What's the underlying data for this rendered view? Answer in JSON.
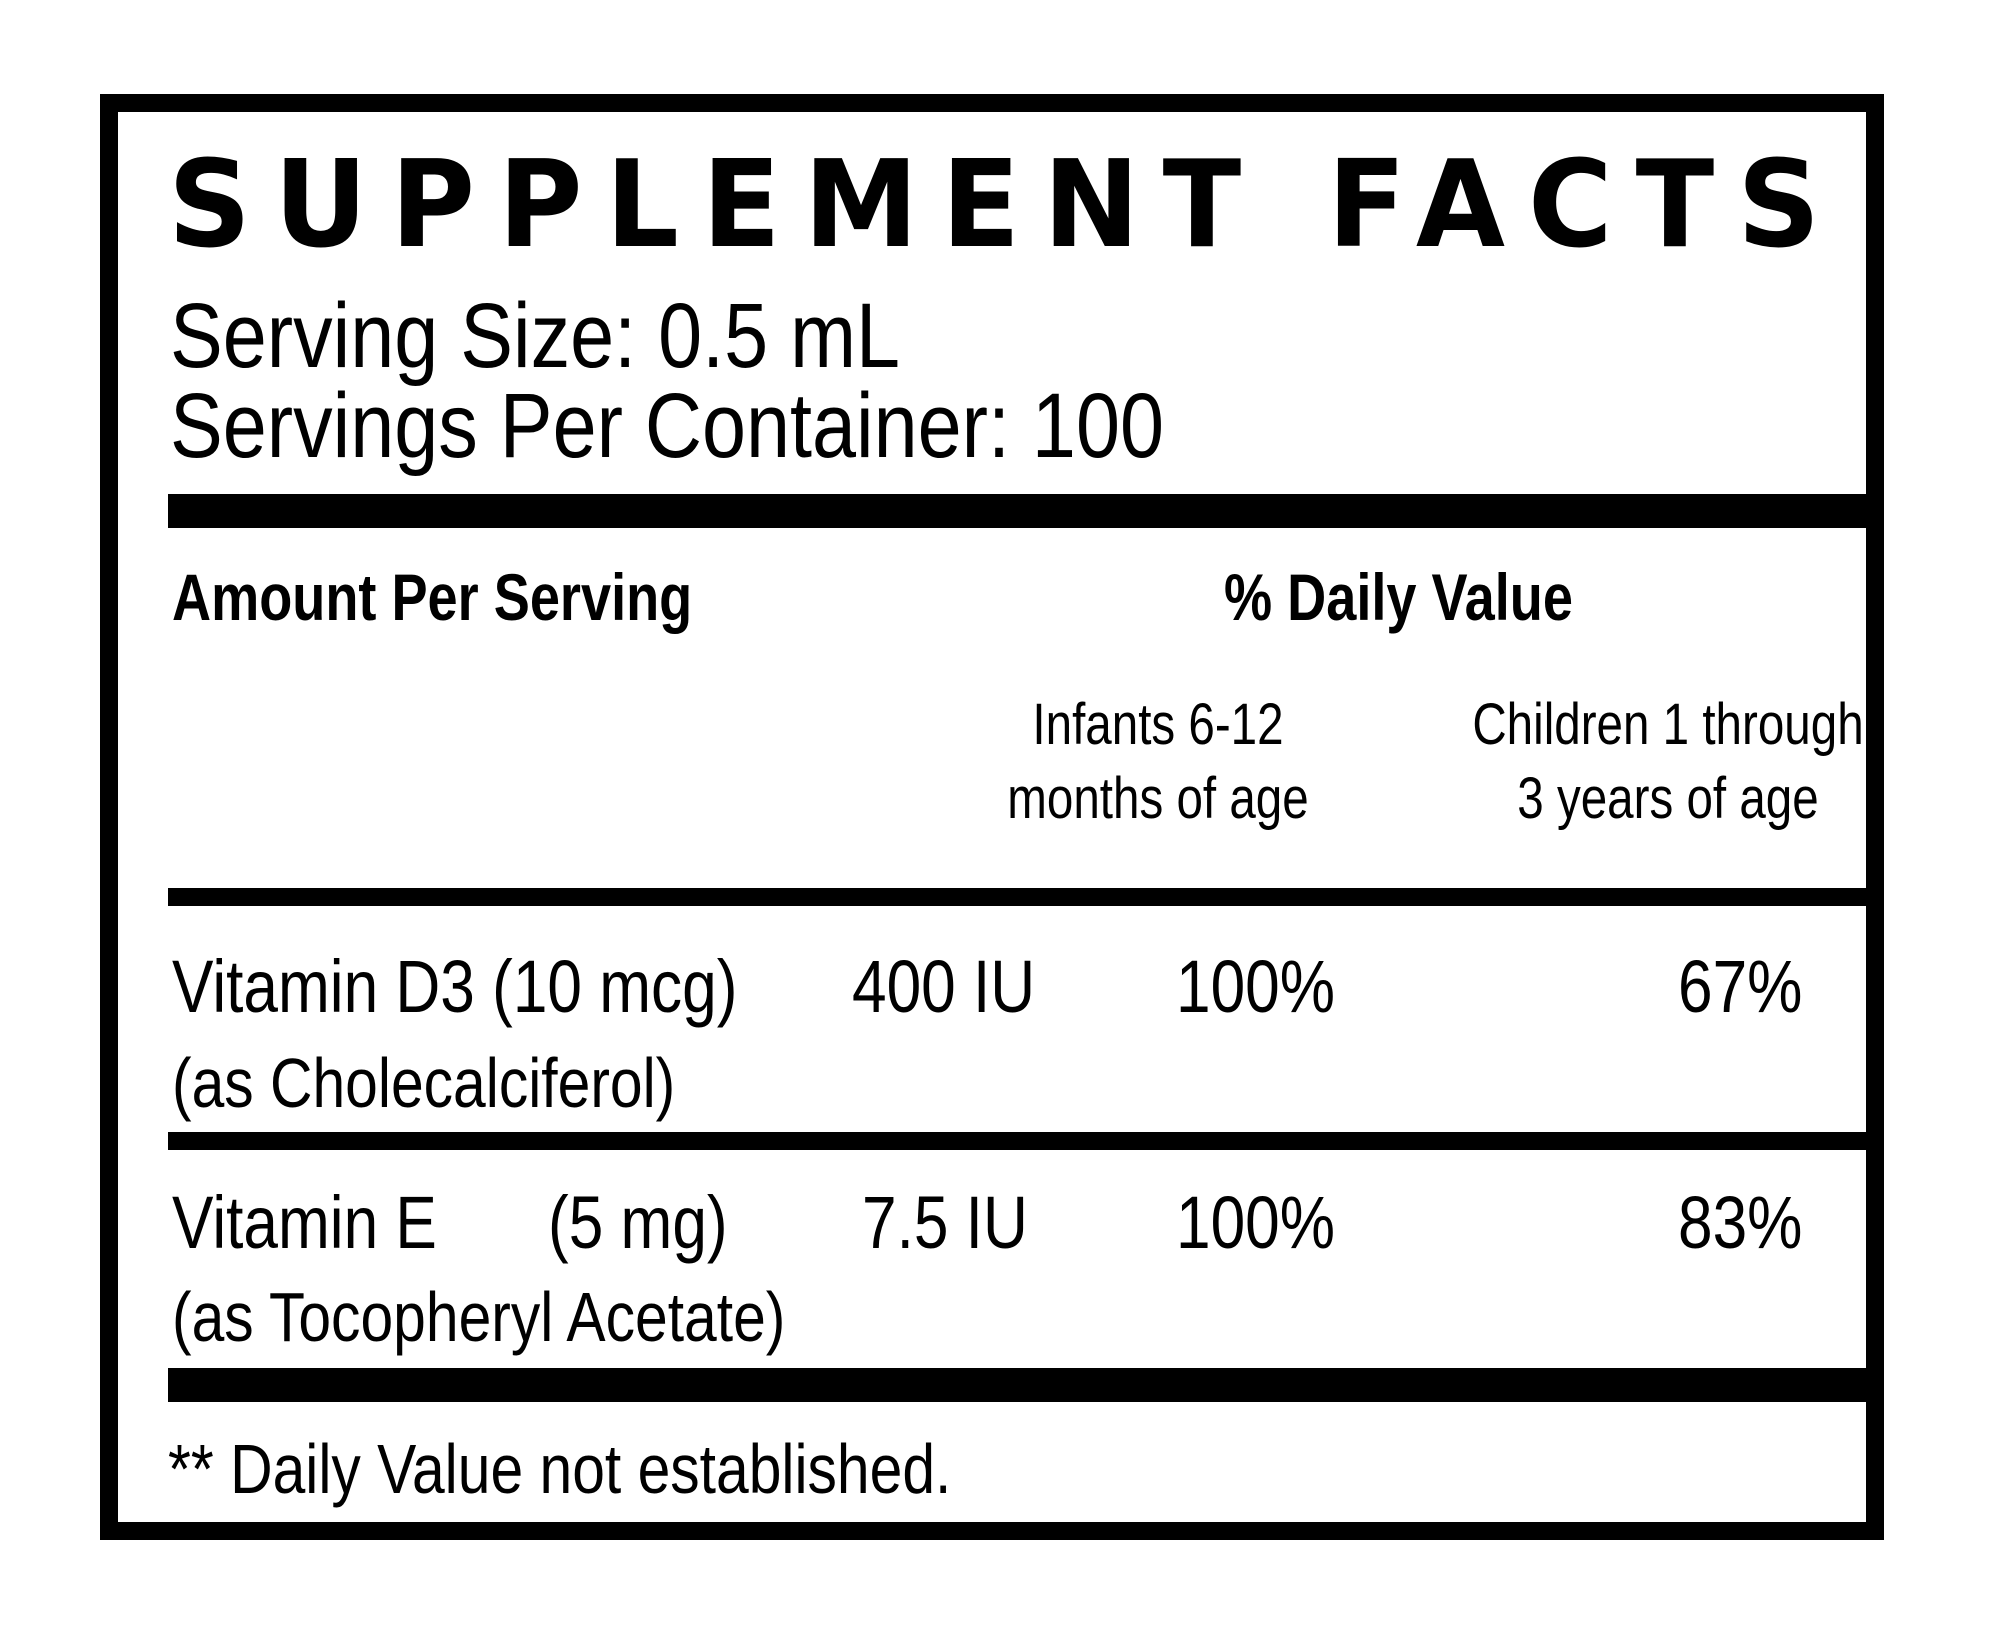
{
  "label": {
    "title": "SUPPLEMENT FACTS",
    "serving_size": "Serving Size: 0.5 mL",
    "servings_per_container": "Servings Per Container: 100",
    "header": {
      "amount_per_serving": "Amount Per Serving",
      "daily_value": "% Daily Value",
      "col_infants_line1": "Infants 6-12",
      "col_infants_line2": "months of age",
      "col_children_line1": "Children 1 through",
      "col_children_line2": "3 years of age"
    },
    "rows": [
      {
        "name": "Vitamin D3 (10 mcg)",
        "amount": "400 IU",
        "infants_dv": "100%",
        "children_dv": "67%",
        "source": "(as Cholecalciferol)"
      },
      {
        "name": "Vitamin E",
        "dose": "(5 mg)",
        "amount": "7.5 IU",
        "infants_dv": "100%",
        "children_dv": "83%",
        "source": "(as Tocopheryl Acetate)"
      }
    ],
    "footnote": "** Daily Value not established."
  },
  "colors": {
    "ink": "#000000",
    "background": "#ffffff"
  }
}
